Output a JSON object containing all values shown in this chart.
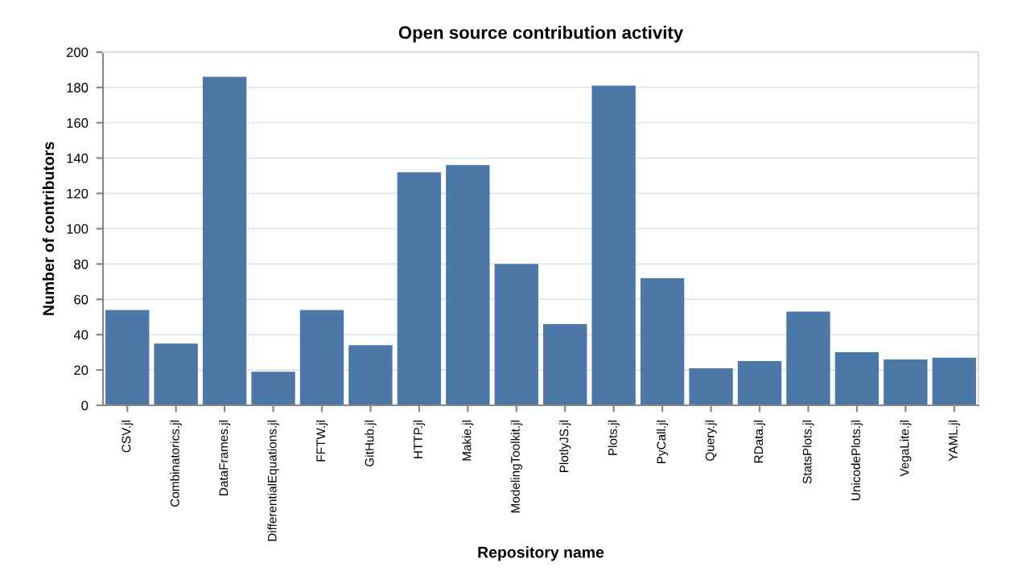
{
  "chart_data": {
    "type": "bar",
    "title": "Open source contribution activity",
    "xlabel": "Repository name",
    "ylabel": "Number of contributors",
    "categories": [
      "CSV.jl",
      "Combinatorics.jl",
      "DataFrames.jl",
      "DifferentialEquations.jl",
      "FFTW.jl",
      "GitHub.jl",
      "HTTP.jl",
      "Makie.jl",
      "ModelingToolkit.jl",
      "PlotlyJS.jl",
      "Plots.jl",
      "PyCall.jl",
      "Query.jl",
      "RData.jl",
      "StatsPlots.jl",
      "UnicodePlots.jl",
      "VegaLite.jl",
      "YAML.jl"
    ],
    "values": [
      54,
      35,
      186,
      19,
      54,
      34,
      132,
      136,
      80,
      46,
      181,
      72,
      21,
      25,
      53,
      30,
      26,
      27
    ],
    "color": "#4c78a8",
    "ylim": [
      0,
      200
    ],
    "yticks": [
      0,
      20,
      40,
      60,
      80,
      100,
      120,
      140,
      160,
      180,
      200
    ],
    "grid": "y"
  }
}
